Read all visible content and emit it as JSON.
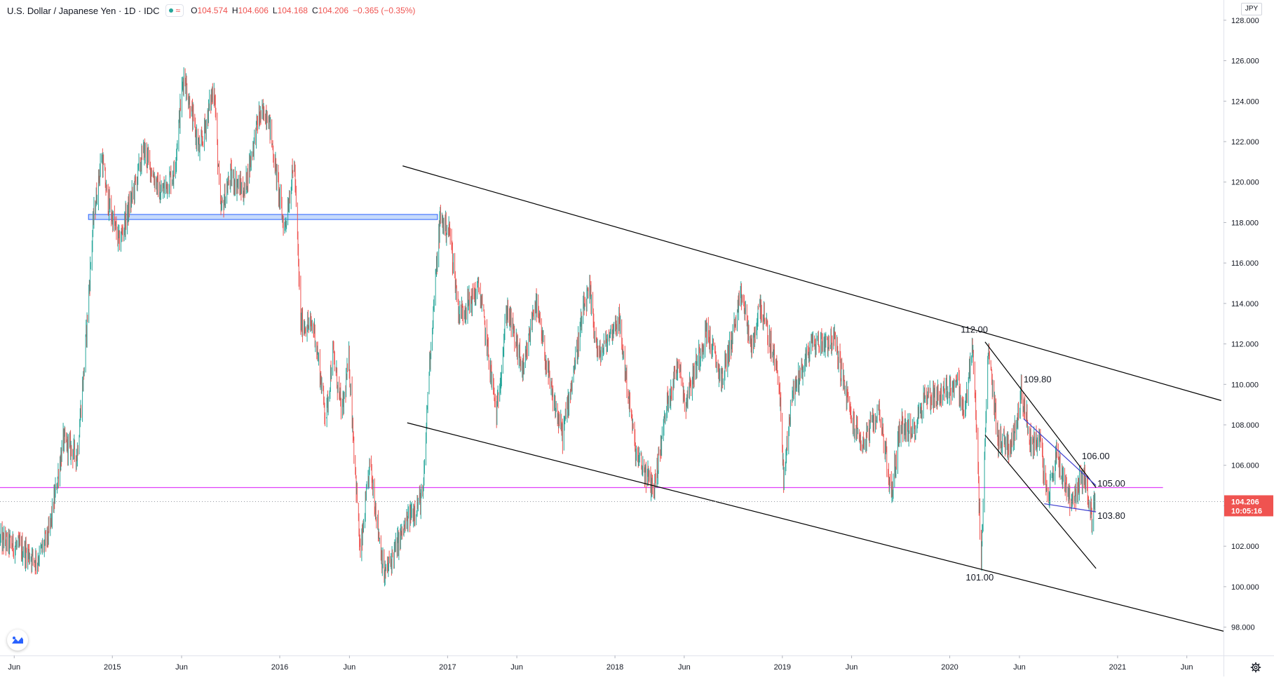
{
  "header": {
    "symbol_title": "U.S. Dollar / Japanese Yen · 1D · IDC",
    "wave_glyph": "≈",
    "ohlc": {
      "open_label": "O",
      "open": "104.574",
      "high_label": "H",
      "high": "104.606",
      "low_label": "L",
      "low": "104.168",
      "close_label": "C",
      "close": "104.206",
      "change": "−0.365 (−0.35%)"
    },
    "currency": "JPY"
  },
  "colors": {
    "up": "#26a69a",
    "down": "#ef5350",
    "trendline": "#000000",
    "pattern_line": "#3f3fd0",
    "horizontal_level": "#e040fb",
    "zone_fill": "#aecbfa",
    "zone_border": "#2962ff",
    "price_tag": "#ef5350"
  },
  "icons": {
    "logo": "tradingview-logo-icon",
    "settings": "gear-icon"
  },
  "chart_data": {
    "type": "candlestick",
    "symbol": "USDJPY",
    "interval": "1D",
    "x_start": "2014-05-01",
    "x_end": "2021-08-20",
    "ylim": [
      96.6,
      129.0
    ],
    "y_ticks": [
      "98.000",
      "100.000",
      "102.000",
      "104.000",
      "106.000",
      "108.000",
      "110.000",
      "112.000",
      "114.000",
      "116.000",
      "118.000",
      "120.000",
      "122.000",
      "124.000",
      "126.000",
      "128.000"
    ],
    "x_ticks": [
      {
        "date": "2014-06-01",
        "label": "Jun"
      },
      {
        "date": "2015-01-01",
        "label": "2015"
      },
      {
        "date": "2015-06-01",
        "label": "Jun"
      },
      {
        "date": "2016-01-01",
        "label": "2016"
      },
      {
        "date": "2016-06-01",
        "label": "Jun"
      },
      {
        "date": "2017-01-01",
        "label": "2017"
      },
      {
        "date": "2017-06-01",
        "label": "Jun"
      },
      {
        "date": "2018-01-01",
        "label": "2018"
      },
      {
        "date": "2018-06-01",
        "label": "Jun"
      },
      {
        "date": "2019-01-01",
        "label": "2019"
      },
      {
        "date": "2019-06-01",
        "label": "Jun"
      },
      {
        "date": "2020-01-01",
        "label": "2020"
      },
      {
        "date": "2020-06-01",
        "label": "Jun"
      },
      {
        "date": "2021-01-01",
        "label": "2021"
      },
      {
        "date": "2021-06-01",
        "label": "Jun"
      }
    ],
    "price_path": [
      [
        "2014-05-01",
        102.3
      ],
      [
        "2014-06-15",
        101.9
      ],
      [
        "2014-07-20",
        101.3
      ],
      [
        "2014-08-15",
        102.6
      ],
      [
        "2014-09-15",
        107.2
      ],
      [
        "2014-10-15",
        106.5
      ],
      [
        "2014-10-31",
        110.9
      ],
      [
        "2014-11-20",
        118.2
      ],
      [
        "2014-12-08",
        121.3
      ],
      [
        "2014-12-20",
        119.2
      ],
      [
        "2015-01-15",
        117.0
      ],
      [
        "2015-02-15",
        119.5
      ],
      [
        "2015-03-10",
        121.6
      ],
      [
        "2015-04-15",
        119.4
      ],
      [
        "2015-05-15",
        120.5
      ],
      [
        "2015-06-05",
        125.4
      ],
      [
        "2015-06-25",
        123.0
      ],
      [
        "2015-07-10",
        121.5
      ],
      [
        "2015-08-10",
        124.8
      ],
      [
        "2015-08-24",
        118.5
      ],
      [
        "2015-09-15",
        120.3
      ],
      [
        "2015-10-15",
        119.5
      ],
      [
        "2015-11-15",
        123.2
      ],
      [
        "2015-12-05",
        123.5
      ],
      [
        "2015-12-20",
        121.0
      ],
      [
        "2016-01-10",
        117.6
      ],
      [
        "2016-02-01",
        121.0
      ],
      [
        "2016-02-15",
        113.0
      ],
      [
        "2016-03-15",
        112.8
      ],
      [
        "2016-04-10",
        108.3
      ],
      [
        "2016-04-25",
        111.6
      ],
      [
        "2016-05-15",
        108.5
      ],
      [
        "2016-05-30",
        111.2
      ],
      [
        "2016-06-24",
        101.5
      ],
      [
        "2016-07-15",
        106.1
      ],
      [
        "2016-08-15",
        100.5
      ],
      [
        "2016-09-15",
        102.2
      ],
      [
        "2016-10-10",
        103.5
      ],
      [
        "2016-11-08",
        104.5
      ],
      [
        "2016-11-20",
        110.5
      ],
      [
        "2016-12-15",
        118.2
      ],
      [
        "2017-01-05",
        117.5
      ],
      [
        "2017-01-25",
        113.5
      ],
      [
        "2017-02-15",
        114.0
      ],
      [
        "2017-03-10",
        114.8
      ],
      [
        "2017-04-17",
        108.5
      ],
      [
        "2017-05-10",
        113.8
      ],
      [
        "2017-06-15",
        110.5
      ],
      [
        "2017-07-10",
        114.2
      ],
      [
        "2017-08-15",
        109.5
      ],
      [
        "2017-09-08",
        107.5
      ],
      [
        "2017-10-25",
        113.8
      ],
      [
        "2017-11-06",
        114.5
      ],
      [
        "2017-11-25",
        111.3
      ],
      [
        "2018-01-08",
        113.3
      ],
      [
        "2018-02-15",
        106.5
      ],
      [
        "2018-03-26",
        104.8
      ],
      [
        "2018-04-25",
        109.2
      ],
      [
        "2018-05-21",
        111.3
      ],
      [
        "2018-06-01",
        109.0
      ],
      [
        "2018-07-19",
        112.7
      ],
      [
        "2018-08-21",
        110.2
      ],
      [
        "2018-10-04",
        114.4
      ],
      [
        "2018-10-26",
        111.6
      ],
      [
        "2018-11-12",
        114.0
      ],
      [
        "2018-12-24",
        110.3
      ],
      [
        "2019-01-03",
        105.2
      ],
      [
        "2019-01-20",
        109.4
      ],
      [
        "2019-03-05",
        112.0
      ],
      [
        "2019-04-24",
        112.2
      ],
      [
        "2019-05-31",
        108.3
      ],
      [
        "2019-06-25",
        107.0
      ],
      [
        "2019-07-31",
        108.8
      ],
      [
        "2019-08-26",
        104.5
      ],
      [
        "2019-09-15",
        108.1
      ],
      [
        "2019-10-10",
        107.5
      ],
      [
        "2019-11-06",
        109.4
      ],
      [
        "2019-12-15",
        109.5
      ],
      [
        "2020-01-17",
        110.2
      ],
      [
        "2020-01-31",
        108.4
      ],
      [
        "2020-02-20",
        112.0
      ],
      [
        "2020-03-09",
        101.2
      ],
      [
        "2020-03-24",
        111.7
      ],
      [
        "2020-04-15",
        107.3
      ],
      [
        "2020-05-15",
        107.0
      ],
      [
        "2020-06-05",
        109.7
      ],
      [
        "2020-06-25",
        107.1
      ],
      [
        "2020-07-15",
        107.3
      ],
      [
        "2020-07-31",
        104.2
      ],
      [
        "2020-08-20",
        106.6
      ],
      [
        "2020-09-21",
        104.2
      ],
      [
        "2020-10-20",
        105.6
      ],
      [
        "2020-11-06",
        103.2
      ],
      [
        "2020-11-12",
        104.6
      ]
    ],
    "annotations": [
      {
        "text": "112.00",
        "date": "2020-01-25",
        "price": 112.55
      },
      {
        "text": "109.80",
        "date": "2020-06-10",
        "price": 110.1
      },
      {
        "text": "106.00",
        "date": "2020-10-15",
        "price": 106.3
      },
      {
        "text": "105.00",
        "date": "2020-11-18",
        "price": 104.95
      },
      {
        "text": "103.80",
        "date": "2020-11-18",
        "price": 103.35
      },
      {
        "text": "101.00",
        "date": "2020-02-05",
        "price": 100.3
      }
    ],
    "trendlines": [
      {
        "name": "channel-upper",
        "from": [
          "2016-09-25",
          120.8
        ],
        "to": [
          "2021-08-15",
          109.2
        ],
        "style": "trendline"
      },
      {
        "name": "channel-lower",
        "from": [
          "2016-10-05",
          108.1
        ],
        "to": [
          "2021-08-20",
          97.8
        ],
        "style": "trendline"
      },
      {
        "name": "wedge-upper",
        "from": [
          "2020-03-18",
          112.1
        ],
        "to": [
          "2020-11-15",
          104.9
        ],
        "style": "trendline"
      },
      {
        "name": "wedge-lower",
        "from": [
          "2020-03-18",
          107.5
        ],
        "to": [
          "2020-11-15",
          100.9
        ],
        "style": "trendline"
      },
      {
        "name": "triangle-upper",
        "from": [
          "2020-06-10",
          108.3
        ],
        "to": [
          "2020-11-15",
          105.0
        ],
        "style": "pattern"
      },
      {
        "name": "triangle-lower",
        "from": [
          "2020-07-25",
          104.1
        ],
        "to": [
          "2020-11-15",
          103.7
        ],
        "style": "pattern"
      }
    ],
    "horizontal_levels": [
      {
        "name": "support-105",
        "price": 104.9,
        "from": "2014-05-01",
        "to": "2021-04-10"
      }
    ],
    "zones": [
      {
        "name": "resistance-zone",
        "from": "2014-11-10",
        "to": "2016-12-10",
        "price_low": 118.15,
        "price_high": 118.4
      }
    ],
    "last_price": {
      "value": "104.206",
      "countdown": "10:05:16",
      "price": 104.206
    }
  }
}
